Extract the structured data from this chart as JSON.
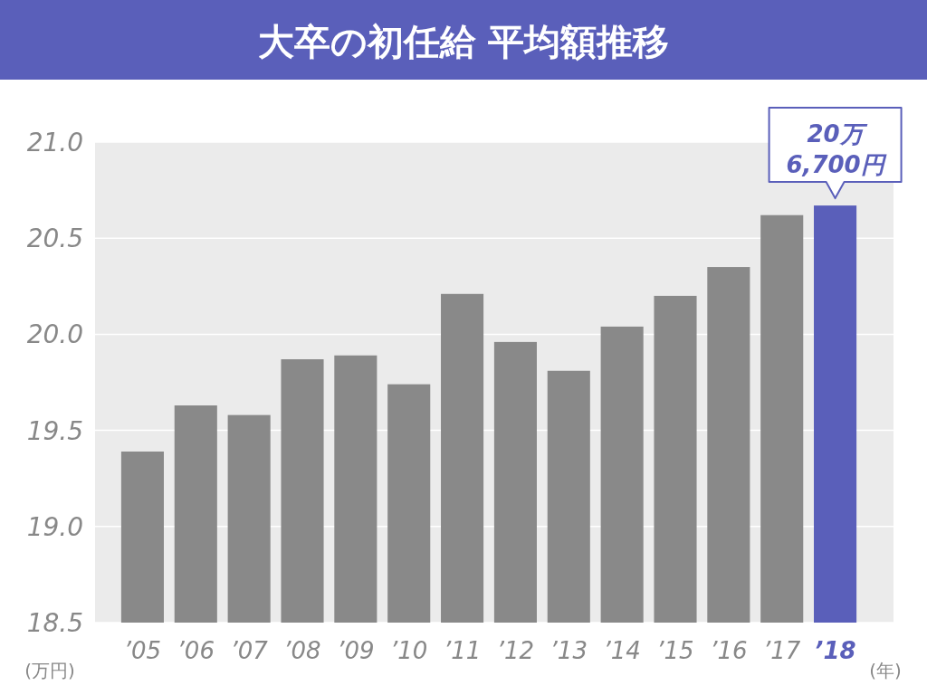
{
  "chart_data": {
    "type": "bar",
    "title": "大卒の初任給 平均額推移",
    "ylabel": "(万円)",
    "xlabel": "(年)",
    "categories": [
      "’05",
      "’06",
      "’07",
      "’08",
      "’09",
      "’10",
      "’11",
      "’12",
      "’13",
      "’14",
      "’15",
      "’16",
      "’17",
      "’18"
    ],
    "values": [
      19.39,
      19.63,
      19.58,
      19.87,
      19.89,
      19.74,
      20.21,
      19.96,
      19.81,
      20.04,
      20.2,
      20.35,
      20.62,
      20.67
    ],
    "colors": [
      "#898989",
      "#898989",
      "#898989",
      "#898989",
      "#898989",
      "#898989",
      "#898989",
      "#898989",
      "#898989",
      "#898989",
      "#898989",
      "#898989",
      "#898989",
      "#5a5fba"
    ],
    "ylim": [
      18.5,
      21.0
    ],
    "yticks": [
      18.5,
      {
        "value": 19,
        "label": "19.0"
      },
      19.5,
      {
        "value": 20,
        "label": "20.0"
      },
      20.5,
      {
        "value": 21,
        "label": "21.0"
      }
    ],
    "grid": "y",
    "annotations": [
      {
        "text": "20万\n6,700円",
        "x": "’18",
        "y": 20.67
      }
    ]
  }
}
